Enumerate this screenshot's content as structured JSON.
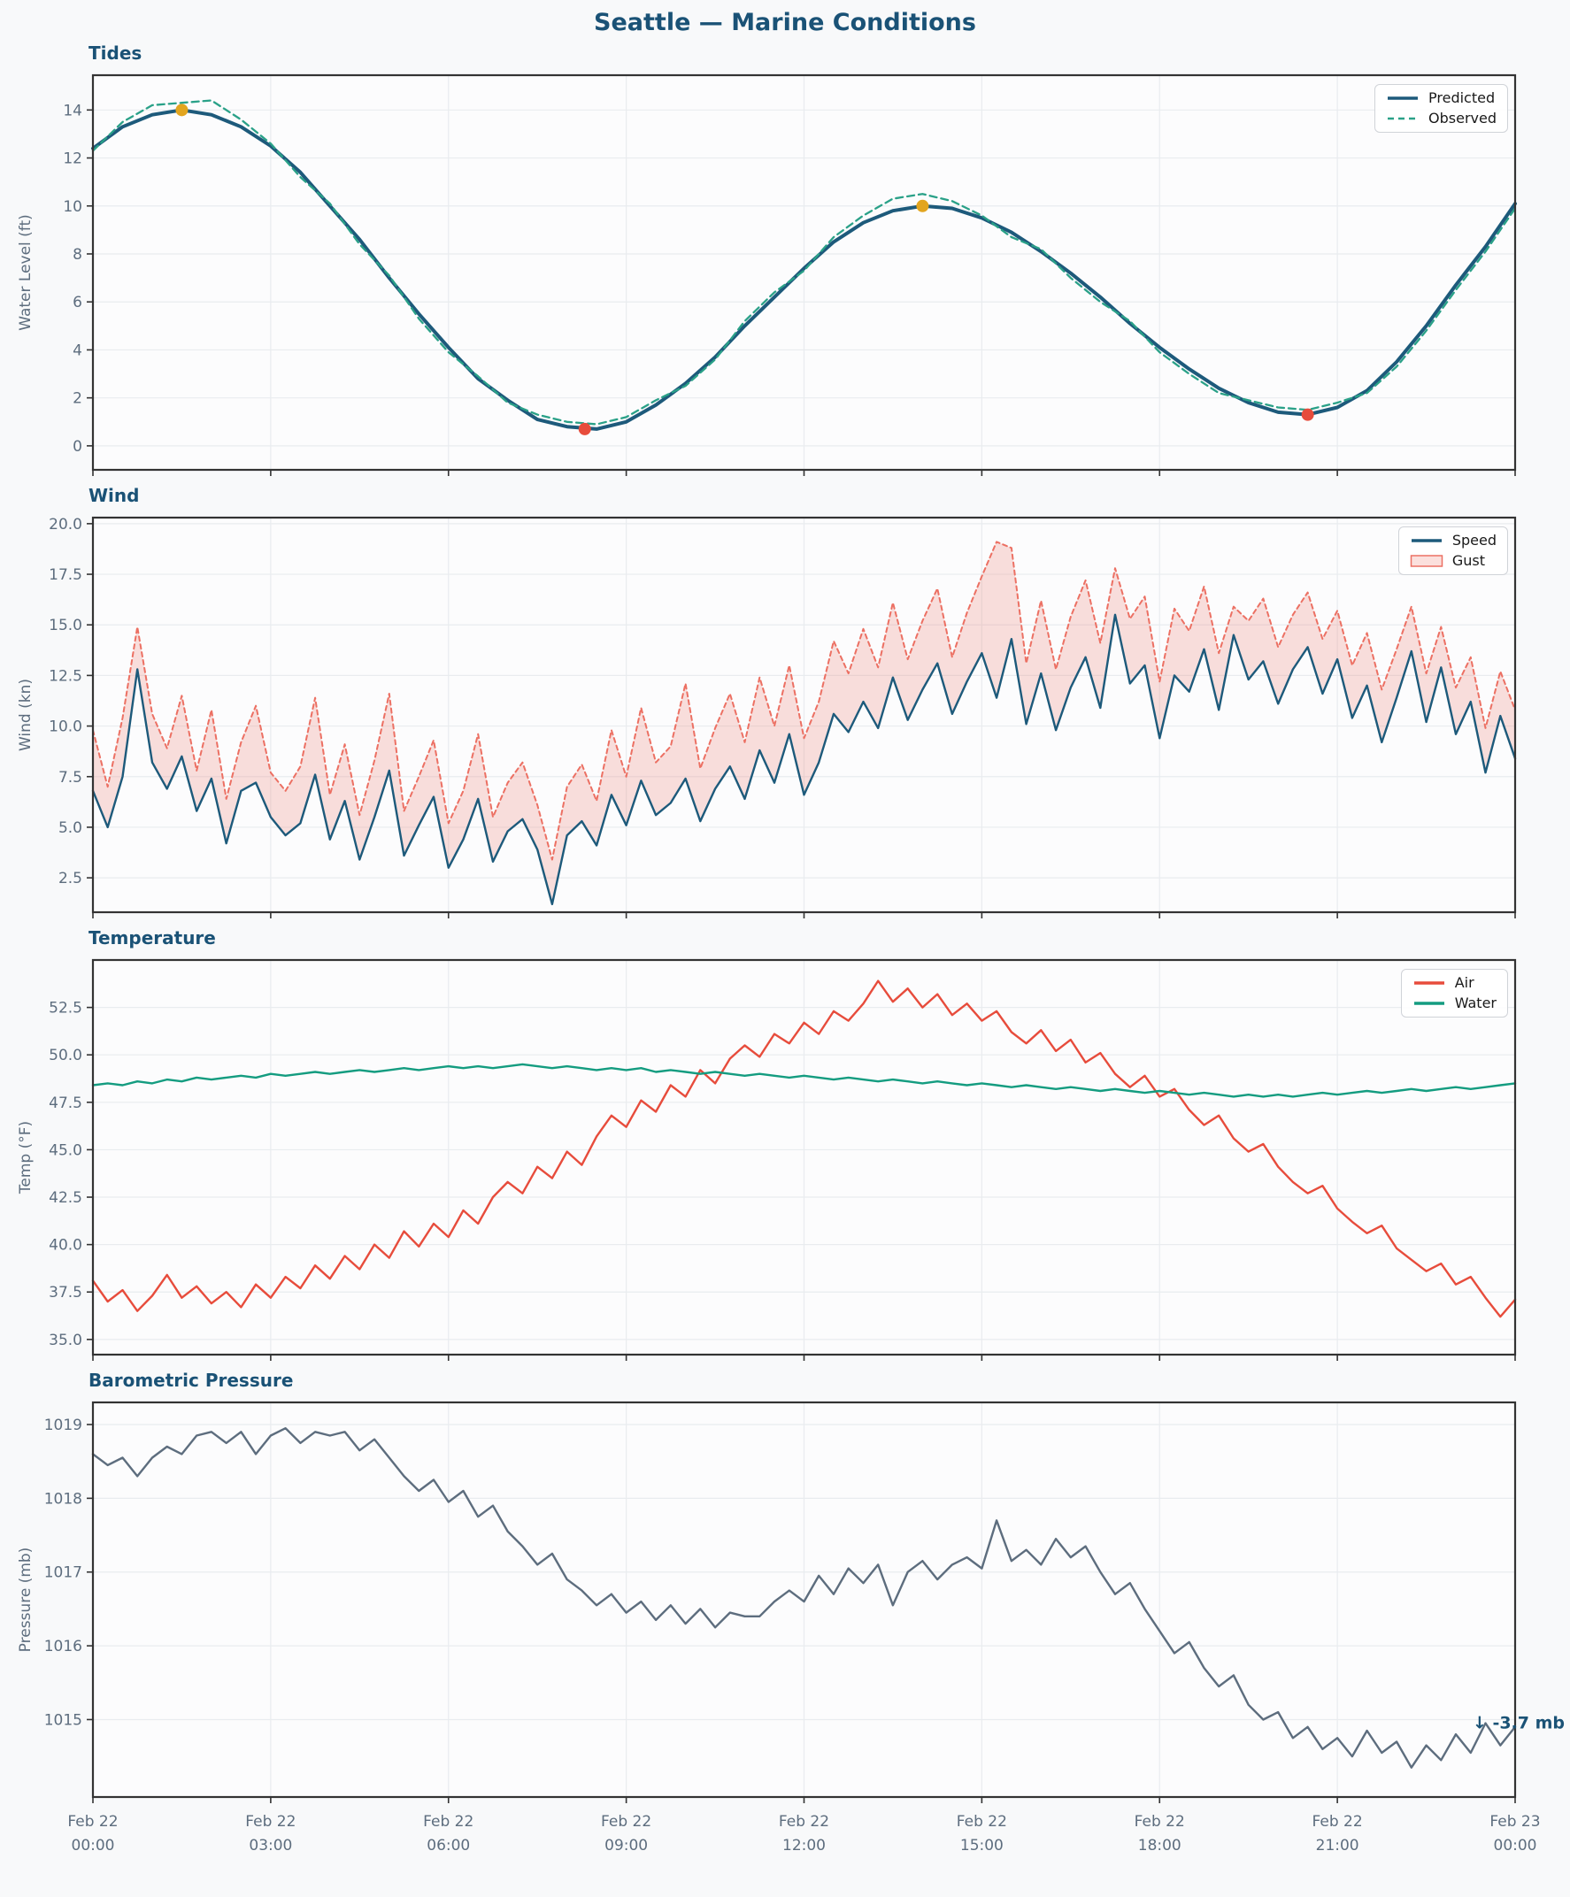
{
  "page_title": "Seattle — Marine Conditions",
  "colors": {
    "title": "#1a5276",
    "panel_title": "#1a5276",
    "predicted": "#1d5a7b",
    "observed": "#2aa188",
    "speed": "#1d5a7b",
    "gust": "#ec7063",
    "gust_fill": "rgba(236,112,99,0.22)",
    "air": "#e74c3c",
    "water": "#149c80",
    "pressure": "#5d6d7e",
    "high_marker": "#e2a51f",
    "low_marker": "#e74c3c",
    "tick_label": "#5d6d7e",
    "grid": "#e9ecef",
    "spine": "#333333",
    "plot_bg": "#fcfcfd",
    "page_bg": "#f8f9fa",
    "annotation": "#1a5276"
  },
  "x_axis": {
    "tick_hours": [
      0,
      3,
      6,
      9,
      12,
      15,
      18,
      21,
      24
    ],
    "tick_labels": [
      [
        "Feb 22",
        "00:00"
      ],
      [
        "Feb 22",
        "03:00"
      ],
      [
        "Feb 22",
        "06:00"
      ],
      [
        "Feb 22",
        "09:00"
      ],
      [
        "Feb 22",
        "12:00"
      ],
      [
        "Feb 22",
        "15:00"
      ],
      [
        "Feb 22",
        "18:00"
      ],
      [
        "Feb 22",
        "21:00"
      ],
      [
        "Feb 23",
        "00:00"
      ]
    ]
  },
  "chart_data": [
    {
      "type": "line",
      "title": "Tides",
      "ylabel": "Water Level (ft)",
      "ylim": [
        -1.0,
        15.45
      ],
      "yticks": [
        0,
        2,
        4,
        6,
        8,
        10,
        12,
        14
      ],
      "ytick_labels": [
        "0",
        "2",
        "4",
        "6",
        "8",
        "10",
        "12",
        "14"
      ],
      "x_start": 0,
      "x_step_hours": 0.5,
      "show_x_labels": false,
      "series": [
        {
          "name": "Predicted",
          "color": "predicted",
          "width": 4,
          "dash": null,
          "values": [
            12.4,
            13.3,
            13.8,
            14.0,
            13.8,
            13.3,
            12.5,
            11.4,
            10.0,
            8.6,
            7.0,
            5.5,
            4.1,
            2.8,
            1.9,
            1.1,
            0.8,
            0.7,
            1.0,
            1.7,
            2.6,
            3.7,
            5.0,
            6.2,
            7.4,
            8.5,
            9.3,
            9.8,
            10.0,
            9.9,
            9.5,
            8.9,
            8.1,
            7.2,
            6.2,
            5.1,
            4.1,
            3.2,
            2.4,
            1.8,
            1.4,
            1.3,
            1.6,
            2.3,
            3.5,
            5.0,
            6.7,
            8.3,
            10.1
          ]
        },
        {
          "name": "Observed",
          "color": "observed",
          "width": 2.3,
          "dash": "8 5",
          "values": [
            12.3,
            13.5,
            14.2,
            14.3,
            14.4,
            13.6,
            12.6,
            11.2,
            10.1,
            8.4,
            7.1,
            5.3,
            3.9,
            2.9,
            1.8,
            1.3,
            1.0,
            0.9,
            1.2,
            1.9,
            2.5,
            3.6,
            5.2,
            6.4,
            7.3,
            8.7,
            9.6,
            10.3,
            10.5,
            10.2,
            9.6,
            8.7,
            8.2,
            7.0,
            6.0,
            5.2,
            3.9,
            3.0,
            2.2,
            1.9,
            1.6,
            1.5,
            1.8,
            2.2,
            3.3,
            4.8,
            6.5,
            8.1,
            9.9
          ]
        }
      ],
      "markers": [
        {
          "kind": "high-tide",
          "hour": 1.5,
          "value": 14.0,
          "color": "high_marker"
        },
        {
          "kind": "low-tide",
          "hour": 8.3,
          "value": 0.7,
          "color": "low_marker"
        },
        {
          "kind": "high-tide",
          "hour": 14.0,
          "value": 10.0,
          "color": "high_marker"
        },
        {
          "kind": "low-tide",
          "hour": 20.5,
          "value": 1.3,
          "color": "low_marker"
        }
      ],
      "legend": [
        {
          "label": "Predicted",
          "swatch": "solid",
          "color": "predicted"
        },
        {
          "label": "Observed",
          "swatch": "dashed",
          "color": "observed"
        }
      ]
    },
    {
      "type": "line",
      "title": "Wind",
      "ylabel": "Wind (kn)",
      "ylim": [
        0.8,
        20.3
      ],
      "yticks": [
        2.5,
        5.0,
        7.5,
        10.0,
        12.5,
        15.0,
        17.5,
        20.0
      ],
      "ytick_labels": [
        "2.5",
        "5.0",
        "7.5",
        "10.0",
        "12.5",
        "15.0",
        "17.5",
        "20.0"
      ],
      "x_start": 0,
      "x_step_hours": 0.25,
      "show_x_labels": false,
      "band": {
        "upper": "Gust",
        "lower": "Speed",
        "fill": "gust_fill"
      },
      "series": [
        {
          "name": "Gust",
          "color": "gust",
          "width": 2,
          "dash": "5 4",
          "values": [
            9.8,
            7.0,
            10.4,
            14.9,
            10.6,
            8.9,
            11.5,
            7.8,
            10.8,
            6.4,
            9.2,
            11.0,
            7.7,
            6.8,
            8.0,
            11.4,
            6.6,
            9.1,
            5.6,
            8.3,
            11.6,
            5.8,
            7.5,
            9.3,
            5.2,
            6.8,
            9.6,
            5.5,
            7.2,
            8.2,
            6.1,
            3.4,
            7.0,
            8.1,
            6.3,
            9.8,
            7.5,
            10.9,
            8.2,
            9.0,
            12.1,
            7.9,
            9.9,
            11.6,
            9.2,
            12.4,
            10.0,
            13.0,
            9.4,
            11.2,
            14.2,
            12.6,
            14.8,
            12.9,
            16.1,
            13.3,
            15.2,
            16.8,
            13.4,
            15.6,
            17.4,
            19.1,
            18.8,
            13.1,
            16.2,
            12.8,
            15.4,
            17.2,
            14.1,
            17.8,
            15.3,
            16.4,
            12.2,
            15.8,
            14.7,
            16.9,
            13.6,
            15.9,
            15.2,
            16.3,
            13.9,
            15.5,
            16.6,
            14.3,
            15.7,
            13.0,
            14.6,
            11.8,
            13.8,
            15.9,
            12.6,
            14.9,
            11.9,
            13.4,
            9.9,
            12.7,
            10.8
          ]
        },
        {
          "name": "Speed",
          "color": "speed",
          "width": 2.4,
          "dash": null,
          "values": [
            6.8,
            5.0,
            7.5,
            12.8,
            8.2,
            6.9,
            8.5,
            5.8,
            7.4,
            4.2,
            6.8,
            7.2,
            5.5,
            4.6,
            5.2,
            7.6,
            4.4,
            6.3,
            3.4,
            5.5,
            7.8,
            3.6,
            5.1,
            6.5,
            3.0,
            4.4,
            6.4,
            3.3,
            4.8,
            5.4,
            3.9,
            1.2,
            4.6,
            5.3,
            4.1,
            6.6,
            5.1,
            7.3,
            5.6,
            6.2,
            7.4,
            5.3,
            6.9,
            8.0,
            6.4,
            8.8,
            7.2,
            9.6,
            6.6,
            8.2,
            10.6,
            9.7,
            11.2,
            9.9,
            12.4,
            10.3,
            11.8,
            13.1,
            10.6,
            12.2,
            13.6,
            11.4,
            14.3,
            10.1,
            12.6,
            9.8,
            11.9,
            13.4,
            10.9,
            15.5,
            12.1,
            13.0,
            9.4,
            12.5,
            11.7,
            13.8,
            10.8,
            14.5,
            12.3,
            13.2,
            11.1,
            12.8,
            13.9,
            11.6,
            13.3,
            10.4,
            12.0,
            9.2,
            11.4,
            13.7,
            10.2,
            12.9,
            9.6,
            11.2,
            7.7,
            10.5,
            8.4
          ]
        }
      ],
      "markers": [],
      "legend": [
        {
          "label": "Speed",
          "swatch": "solid",
          "color": "speed"
        },
        {
          "label": "Gust",
          "swatch": "patch",
          "color": "gust"
        }
      ]
    },
    {
      "type": "line",
      "title": "Temperature",
      "ylabel": "Temp (°F)",
      "ylim": [
        34.2,
        55.0
      ],
      "yticks": [
        35.0,
        37.5,
        40.0,
        42.5,
        45.0,
        47.5,
        50.0,
        52.5
      ],
      "ytick_labels": [
        "35.0",
        "37.5",
        "40.0",
        "42.5",
        "45.0",
        "47.5",
        "50.0",
        "52.5"
      ],
      "x_start": 0,
      "x_step_hours": 0.25,
      "show_x_labels": false,
      "series": [
        {
          "name": "Air",
          "color": "air",
          "width": 2.4,
          "dash": null,
          "values": [
            38.1,
            37.0,
            37.6,
            36.5,
            37.3,
            38.4,
            37.2,
            37.8,
            36.9,
            37.5,
            36.7,
            37.9,
            37.2,
            38.3,
            37.7,
            38.9,
            38.2,
            39.4,
            38.7,
            40.0,
            39.3,
            40.7,
            39.9,
            41.1,
            40.4,
            41.8,
            41.1,
            42.5,
            43.3,
            42.7,
            44.1,
            43.5,
            44.9,
            44.2,
            45.7,
            46.8,
            46.2,
            47.6,
            47.0,
            48.4,
            47.8,
            49.2,
            48.5,
            49.8,
            50.5,
            49.9,
            51.1,
            50.6,
            51.7,
            51.1,
            52.3,
            51.8,
            52.7,
            53.9,
            52.8,
            53.5,
            52.5,
            53.2,
            52.1,
            52.7,
            51.8,
            52.3,
            51.2,
            50.6,
            51.3,
            50.2,
            50.8,
            49.6,
            50.1,
            49.0,
            48.3,
            48.9,
            47.8,
            48.2,
            47.1,
            46.3,
            46.8,
            45.6,
            44.9,
            45.3,
            44.1,
            43.3,
            42.7,
            43.1,
            41.9,
            41.2,
            40.6,
            41.0,
            39.8,
            39.2,
            38.6,
            39.0,
            37.9,
            38.3,
            37.2,
            36.2,
            37.1
          ]
        },
        {
          "name": "Water",
          "color": "water",
          "width": 2.4,
          "dash": null,
          "values": [
            48.4,
            48.5,
            48.4,
            48.6,
            48.5,
            48.7,
            48.6,
            48.8,
            48.7,
            48.8,
            48.9,
            48.8,
            49.0,
            48.9,
            49.0,
            49.1,
            49.0,
            49.1,
            49.2,
            49.1,
            49.2,
            49.3,
            49.2,
            49.3,
            49.4,
            49.3,
            49.4,
            49.3,
            49.4,
            49.5,
            49.4,
            49.3,
            49.4,
            49.3,
            49.2,
            49.3,
            49.2,
            49.3,
            49.1,
            49.2,
            49.1,
            49.0,
            49.1,
            49.0,
            48.9,
            49.0,
            48.9,
            48.8,
            48.9,
            48.8,
            48.7,
            48.8,
            48.7,
            48.6,
            48.7,
            48.6,
            48.5,
            48.6,
            48.5,
            48.4,
            48.5,
            48.4,
            48.3,
            48.4,
            48.3,
            48.2,
            48.3,
            48.2,
            48.1,
            48.2,
            48.1,
            48.0,
            48.1,
            48.0,
            47.9,
            48.0,
            47.9,
            47.8,
            47.9,
            47.8,
            47.9,
            47.8,
            47.9,
            48.0,
            47.9,
            48.0,
            48.1,
            48.0,
            48.1,
            48.2,
            48.1,
            48.2,
            48.3,
            48.2,
            48.3,
            48.4,
            48.5
          ]
        }
      ],
      "markers": [],
      "legend": [
        {
          "label": "Air",
          "swatch": "solid",
          "color": "air"
        },
        {
          "label": "Water",
          "swatch": "solid",
          "color": "water"
        }
      ]
    },
    {
      "type": "line",
      "title": "Barometric Pressure",
      "ylabel": "Pressure (mb)",
      "ylim": [
        1013.95,
        1019.3
      ],
      "yticks": [
        1015,
        1016,
        1017,
        1018,
        1019
      ],
      "ytick_labels": [
        "1015",
        "1016",
        "1017",
        "1018",
        "1019"
      ],
      "x_start": 0,
      "x_step_hours": 0.25,
      "show_x_labels": true,
      "series": [
        {
          "name": "Pressure",
          "color": "pressure",
          "width": 2.4,
          "dash": null,
          "values": [
            1018.6,
            1018.45,
            1018.55,
            1018.3,
            1018.55,
            1018.7,
            1018.6,
            1018.85,
            1018.9,
            1018.75,
            1018.9,
            1018.6,
            1018.85,
            1018.95,
            1018.75,
            1018.9,
            1018.85,
            1018.9,
            1018.65,
            1018.8,
            1018.55,
            1018.3,
            1018.1,
            1018.25,
            1017.95,
            1018.1,
            1017.75,
            1017.9,
            1017.55,
            1017.35,
            1017.1,
            1017.25,
            1016.9,
            1016.75,
            1016.55,
            1016.7,
            1016.45,
            1016.6,
            1016.35,
            1016.55,
            1016.3,
            1016.5,
            1016.25,
            1016.45,
            1016.4,
            1016.4,
            1016.6,
            1016.75,
            1016.6,
            1016.95,
            1016.7,
            1017.05,
            1016.85,
            1017.1,
            1016.55,
            1017.0,
            1017.15,
            1016.9,
            1017.1,
            1017.2,
            1017.05,
            1017.7,
            1017.15,
            1017.3,
            1017.1,
            1017.45,
            1017.2,
            1017.35,
            1017.0,
            1016.7,
            1016.85,
            1016.5,
            1016.2,
            1015.9,
            1016.05,
            1015.7,
            1015.45,
            1015.6,
            1015.2,
            1015.0,
            1015.1,
            1014.75,
            1014.9,
            1014.6,
            1014.75,
            1014.5,
            1014.85,
            1014.55,
            1014.7,
            1014.35,
            1014.65,
            1014.45,
            1014.8,
            1014.55,
            1014.95,
            1014.65,
            1014.9
          ]
        }
      ],
      "markers": [],
      "legend": null,
      "annotation": {
        "text": "↓ -3.7 mb",
        "hour": 24,
        "value": 1014.95
      }
    }
  ]
}
